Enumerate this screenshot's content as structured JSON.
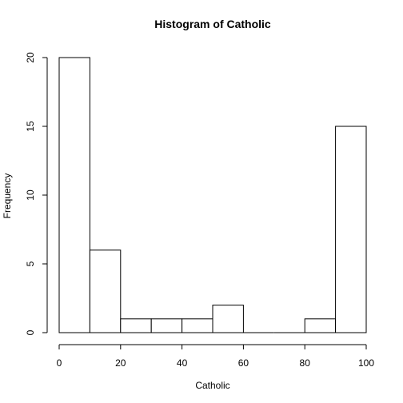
{
  "chart_data": {
    "type": "bar",
    "title": "Histogram of Catholic",
    "xlabel": "Catholic",
    "ylabel": "Frequency",
    "bins": [
      {
        "from": 0,
        "to": 10,
        "count": 20
      },
      {
        "from": 10,
        "to": 20,
        "count": 6
      },
      {
        "from": 20,
        "to": 30,
        "count": 1
      },
      {
        "from": 30,
        "to": 40,
        "count": 1
      },
      {
        "from": 40,
        "to": 50,
        "count": 1
      },
      {
        "from": 50,
        "to": 60,
        "count": 2
      },
      {
        "from": 60,
        "to": 70,
        "count": 0
      },
      {
        "from": 70,
        "to": 80,
        "count": 0
      },
      {
        "from": 80,
        "to": 90,
        "count": 1
      },
      {
        "from": 90,
        "to": 100,
        "count": 15
      }
    ],
    "xlim": [
      0,
      100
    ],
    "ylim": [
      0,
      20
    ],
    "xticks": [
      0,
      20,
      40,
      60,
      80,
      100
    ],
    "yticks": [
      0,
      5,
      10,
      15,
      20
    ],
    "grid": false,
    "legend": "none"
  }
}
